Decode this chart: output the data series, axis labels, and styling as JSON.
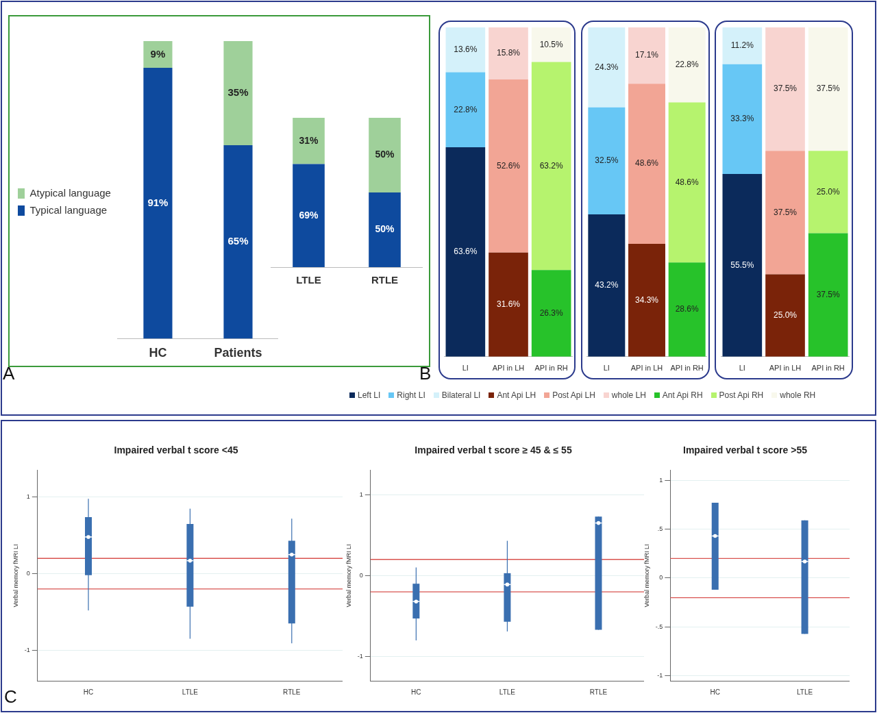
{
  "chart_data": [
    {
      "type": "bar",
      "categories": [
        "HC",
        "Patients"
      ],
      "stacked": true,
      "legend": "left",
      "annotations": [
        "A"
      ],
      "series": [
        {
          "name": "Typical language",
          "color": "#0e4a9e",
          "values": [
            91,
            65
          ],
          "value_labels": [
            "91%",
            "65%"
          ]
        },
        {
          "name": "Atypical language",
          "color": "#9fd09a",
          "values": [
            9,
            35
          ],
          "value_labels": [
            "9%",
            "35%"
          ]
        }
      ]
    },
    {
      "type": "bar",
      "categories": [
        "LTLE",
        "RTLE"
      ],
      "stacked": true,
      "series": [
        {
          "color": "#0e4a9e",
          "values": [
            69,
            50
          ],
          "value_labels": [
            "69%",
            "50%"
          ]
        },
        {
          "color": "#9fd09a",
          "values": [
            31,
            50
          ],
          "value_labels": [
            "31%",
            "50%"
          ]
        }
      ]
    },
    {
      "type": "bar",
      "categories": [
        "LI",
        "API in LH",
        "API in RH"
      ],
      "stacked": true,
      "legend": "bottom",
      "annotations": [
        "B"
      ],
      "series": [
        {
          "name": "Left LI",
          "color": "#0b2a5b",
          "values": [
            63.6,
            null,
            null
          ],
          "value_labels": [
            "63.6%",
            null,
            null
          ]
        },
        {
          "name": "Right LI",
          "color": "#67c7f5",
          "values": [
            22.8,
            null,
            null
          ],
          "value_labels": [
            "22.8%",
            null,
            null
          ]
        },
        {
          "name": "Bilateral LI",
          "color": "#d4f1fa",
          "values": [
            13.6,
            null,
            null
          ],
          "value_labels": [
            "13.6%",
            null,
            null
          ]
        },
        {
          "name": "Ant Api LH",
          "color": "#7a2309",
          "values": [
            null,
            31.6,
            null
          ],
          "value_labels": [
            null,
            "31.6%",
            null
          ]
        },
        {
          "name": "Post Api LH",
          "color": "#f2a595",
          "values": [
            null,
            52.6,
            null
          ],
          "value_labels": [
            null,
            "52.6%",
            null
          ]
        },
        {
          "name": "whole  LH",
          "color": "#f8d4d0",
          "values": [
            null,
            15.8,
            null
          ],
          "value_labels": [
            null,
            "15.8%",
            null
          ]
        },
        {
          "name": "Ant Api RH",
          "color": "#27c22a",
          "values": [
            null,
            null,
            26.3
          ],
          "value_labels": [
            null,
            null,
            "26.3%"
          ]
        },
        {
          "name": "Post Api RH",
          "color": "#b6f36e",
          "values": [
            null,
            null,
            63.2
          ],
          "value_labels": [
            null,
            null,
            "63.2%"
          ]
        },
        {
          "name": "whole  RH",
          "color": "#f8f8ec",
          "values": [
            null,
            null,
            10.5
          ],
          "value_labels": [
            null,
            null,
            "10.5%"
          ]
        }
      ]
    },
    {
      "type": "bar",
      "categories": [
        "LI",
        "API in LH",
        "API in RH"
      ],
      "stacked": true,
      "series": [
        {
          "color": "#0b2a5b",
          "values": [
            43.2,
            null,
            null
          ],
          "value_labels": [
            "43.2%",
            null,
            null
          ]
        },
        {
          "color": "#67c7f5",
          "values": [
            32.5,
            null,
            null
          ],
          "value_labels": [
            "32.5%",
            null,
            null
          ]
        },
        {
          "color": "#d4f1fa",
          "values": [
            24.3,
            null,
            null
          ],
          "value_labels": [
            "24.3%",
            null,
            null
          ]
        },
        {
          "color": "#7a2309",
          "values": [
            null,
            34.3,
            null
          ],
          "value_labels": [
            null,
            "34.3%",
            null
          ]
        },
        {
          "color": "#f2a595",
          "values": [
            null,
            48.6,
            null
          ],
          "value_labels": [
            null,
            "48.6%",
            null
          ]
        },
        {
          "color": "#f8d4d0",
          "values": [
            null,
            17.1,
            null
          ],
          "value_labels": [
            null,
            "17.1%",
            null
          ]
        },
        {
          "color": "#27c22a",
          "values": [
            null,
            null,
            28.6
          ],
          "value_labels": [
            null,
            null,
            "28.6%"
          ]
        },
        {
          "color": "#b6f36e",
          "values": [
            null,
            null,
            48.6
          ],
          "value_labels": [
            null,
            null,
            "48.6%"
          ]
        },
        {
          "color": "#f8f8ec",
          "values": [
            null,
            null,
            22.8
          ],
          "value_labels": [
            null,
            null,
            "22.8%"
          ]
        }
      ]
    },
    {
      "type": "bar",
      "categories": [
        "LI",
        "API in LH",
        "API in RH"
      ],
      "stacked": true,
      "series": [
        {
          "color": "#0b2a5b",
          "values": [
            55.5,
            null,
            null
          ],
          "value_labels": [
            "55.5%",
            null,
            null
          ]
        },
        {
          "color": "#67c7f5",
          "values": [
            33.3,
            null,
            null
          ],
          "value_labels": [
            "33.3%",
            null,
            null
          ]
        },
        {
          "color": "#d4f1fa",
          "values": [
            11.2,
            null,
            null
          ],
          "value_labels": [
            "11.2%",
            null,
            null
          ]
        },
        {
          "color": "#7a2309",
          "values": [
            null,
            25.0,
            null
          ],
          "value_labels": [
            null,
            "25.0%",
            null
          ]
        },
        {
          "color": "#f2a595",
          "values": [
            null,
            37.5,
            null
          ],
          "value_labels": [
            null,
            "37.5%",
            null
          ]
        },
        {
          "color": "#f8d4d0",
          "values": [
            null,
            37.5,
            null
          ],
          "value_labels": [
            null,
            "37.5%",
            null
          ]
        },
        {
          "color": "#27c22a",
          "values": [
            null,
            null,
            37.5
          ],
          "value_labels": [
            null,
            null,
            "37.5%"
          ]
        },
        {
          "color": "#b6f36e",
          "values": [
            null,
            null,
            25.0
          ],
          "value_labels": [
            null,
            null,
            "25.0%"
          ]
        },
        {
          "color": "#f8f8ec",
          "values": [
            null,
            null,
            37.5
          ],
          "value_labels": [
            null,
            null,
            "37.5%"
          ]
        }
      ]
    },
    {
      "type": "box",
      "title": "Impaired verbal t score <45",
      "ylabel": "Verbal memory fMRI LI",
      "categories": [
        "HC",
        "LTLE",
        "RTLE"
      ],
      "ylim": [
        -1.4,
        1.35
      ],
      "yticks": [
        -1,
        0,
        1
      ],
      "grid": "y",
      "annotations": [
        "C"
      ],
      "ref_lines": [
        {
          "axis": "y",
          "value": 0.2,
          "color": "#d9534f"
        },
        {
          "axis": "y",
          "value": -0.2,
          "color": "#d9534f"
        }
      ],
      "series": [
        {
          "color": "#3a6fb0",
          "boxes": [
            {
              "low": -0.48,
              "q1": -0.02,
              "median": 0.48,
              "q3": 0.74,
              "high": 0.98
            },
            {
              "low": -0.85,
              "q1": -0.43,
              "median": 0.17,
              "q3": 0.65,
              "high": 0.85
            },
            {
              "low": -0.91,
              "q1": -0.65,
              "median": 0.25,
              "q3": 0.43,
              "high": 0.72
            }
          ]
        }
      ]
    },
    {
      "type": "box",
      "title": "Impaired verbal t score ≥ 45 & ≤ 55",
      "ylabel": "Verbal memory fMRI LI",
      "categories": [
        "HC",
        "LTLE",
        "RTLE"
      ],
      "ylim": [
        -1.3,
        1.3
      ],
      "yticks": [
        -1,
        0,
        1
      ],
      "grid": "y",
      "ref_lines": [
        {
          "axis": "y",
          "value": 0.2,
          "color": "#d9534f"
        },
        {
          "axis": "y",
          "value": -0.2,
          "color": "#d9534f"
        }
      ],
      "series": [
        {
          "color": "#3a6fb0",
          "boxes": [
            {
              "low": -0.8,
              "q1": -0.53,
              "median": -0.32,
              "q3": -0.1,
              "high": 0.1
            },
            {
              "low": -0.69,
              "q1": -0.57,
              "median": -0.11,
              "q3": 0.03,
              "high": 0.43
            },
            {
              "low": -0.67,
              "q1": -0.67,
              "median": 0.65,
              "q3": 0.73,
              "high": 0.73
            }
          ]
        }
      ]
    },
    {
      "type": "box",
      "title": "Impaired verbal t score >55",
      "ylabel": "Verbal memory fMRI LI",
      "categories": [
        "HC",
        "LTLE"
      ],
      "ylim": [
        -1.05,
        1.1
      ],
      "yticks": [
        -1,
        {
          "value": -0.5,
          "label": "-.5"
        },
        0,
        {
          "value": 0.5,
          "label": ".5"
        },
        1
      ],
      "grid": "y",
      "ref_lines": [
        {
          "axis": "y",
          "value": 0.2,
          "color": "#d9534f"
        },
        {
          "axis": "y",
          "value": -0.2,
          "color": "#d9534f"
        }
      ],
      "series": [
        {
          "color": "#3a6fb0",
          "boxes": [
            {
              "low": -0.12,
              "q1": -0.12,
              "median": 0.43,
              "q3": 0.77,
              "high": 0.77
            },
            {
              "low": -0.57,
              "q1": -0.57,
              "median": 0.17,
              "q3": 0.59,
              "high": 0.59
            }
          ]
        }
      ]
    }
  ]
}
